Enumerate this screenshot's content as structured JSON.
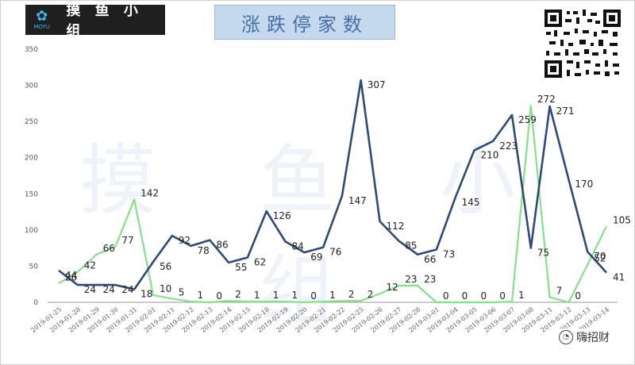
{
  "header": {
    "logo_text": "摸 鱼 小 组",
    "logo_sub": "MOYU",
    "title": "涨跌停家数"
  },
  "watermark": "摸 鱼 小 组",
  "credit": {
    "label": "嗨招财",
    "icon": "wechat-icon"
  },
  "colors": {
    "series_up": "#2d4a7a",
    "series_down": "#86e08a",
    "title_bg": "#c5d9ee"
  },
  "chart_data": {
    "type": "line",
    "title": "涨跌停家数",
    "ylim": [
      0,
      350
    ],
    "yticks": [
      0,
      50,
      100,
      150,
      200,
      250,
      300,
      350
    ],
    "grid": false,
    "x": [
      "2019-01-25",
      "2019-01-28",
      "2019-01-29",
      "2019-01-30",
      "2019-01-31",
      "2019-02-01",
      "2019-02-11",
      "2019-02-12",
      "2019-02-13",
      "2019-02-14",
      "2019-02-15",
      "2019-02-18",
      "2019-02-19",
      "2019-02-20",
      "2019-02-21",
      "2019-02-22",
      "2019-02-25",
      "2019-02-26",
      "2019-02-27",
      "2019-02-28",
      "2019-03-01",
      "2019-03-04",
      "2019-03-05",
      "2019-03-06",
      "2019-03-07",
      "2019-03-08",
      "2019-03-11",
      "2019-03-12",
      "2019-03-13",
      "2019-03-14"
    ],
    "series": [
      {
        "values": [
          44,
          24,
          24,
          24,
          18,
          56,
          92,
          78,
          86,
          55,
          62,
          126,
          84,
          69,
          76,
          147,
          307,
          112,
          85,
          66,
          73,
          145,
          210,
          223,
          259,
          75,
          271,
          170,
          70,
          41
        ]
      },
      {
        "values": [
          26,
          42,
          66,
          77,
          142,
          10,
          5,
          1,
          0,
          2,
          1,
          1,
          1,
          0,
          1,
          2,
          2,
          12,
          23,
          23,
          0,
          0,
          0,
          0,
          1,
          272,
          7,
          0,
          52,
          105
        ]
      }
    ],
    "labels_up": [
      "44",
      "24",
      "24",
      "24",
      "18",
      "56",
      "92",
      "78",
      "86",
      "55",
      "62",
      "126",
      "84",
      "69",
      "76",
      "147",
      "307",
      "112",
      "85",
      "66",
      "73",
      "145",
      "210",
      "223",
      "259",
      "75",
      "271",
      "170",
      "70",
      "41"
    ],
    "labels_down": [
      "26",
      "42",
      "66",
      "77",
      "142",
      "10",
      "5",
      "1",
      "0",
      "2",
      "1",
      "1",
      "1",
      "0",
      "1",
      "2",
      "2",
      "12",
      "23",
      "23",
      "0",
      "0",
      "0",
      "0",
      "1",
      "272",
      "7",
      "0",
      "52",
      "105"
    ]
  }
}
